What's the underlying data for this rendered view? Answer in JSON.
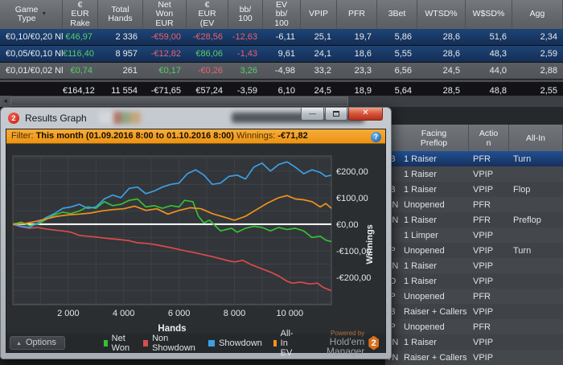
{
  "accent_colors": {
    "positive": "#55cf67",
    "negative": "#e9636f",
    "selected_row": "#16305c",
    "filter_bar": "#f2a12e"
  },
  "stats_table": {
    "columns": [
      {
        "label": "Game\nType",
        "sort_arrow": true
      },
      {
        "label": "€\nEUR\nRake"
      },
      {
        "label": "Total\nHands"
      },
      {
        "label": "Net\nWon\nEUR"
      },
      {
        "label": "€\nEUR\n(EV"
      },
      {
        "label": "bb/\n100"
      },
      {
        "label": "EV\nbb/\n100"
      },
      {
        "label": "VPIP"
      },
      {
        "label": "PFR"
      },
      {
        "label": "3Bet"
      },
      {
        "label": "WTSD%"
      },
      {
        "label": "W$SD%"
      },
      {
        "label": "Agg"
      }
    ],
    "rows": [
      {
        "selected": true,
        "cells": [
          {
            "v": "€0,10/€0,20 Nl"
          },
          {
            "v": "€46,97",
            "c": "pos"
          },
          {
            "v": "2 336"
          },
          {
            "v": "-€59,00",
            "c": "neg"
          },
          {
            "v": "-€28,56",
            "c": "neg"
          },
          {
            "v": "-12,63",
            "c": "neg"
          },
          {
            "v": "-6,11"
          },
          {
            "v": "25,1"
          },
          {
            "v": "19,7"
          },
          {
            "v": "5,86"
          },
          {
            "v": "28,6"
          },
          {
            "v": "51,6"
          },
          {
            "v": "2,34"
          }
        ]
      },
      {
        "selected": true,
        "cells": [
          {
            "v": "€0,05/€0,10 Nl"
          },
          {
            "v": "€116,40",
            "c": "pos"
          },
          {
            "v": "8 957"
          },
          {
            "v": "-€12,82",
            "c": "neg"
          },
          {
            "v": "€86,06",
            "c": "pos"
          },
          {
            "v": "-1,43",
            "c": "neg"
          },
          {
            "v": "9,61"
          },
          {
            "v": "24,1"
          },
          {
            "v": "18,6"
          },
          {
            "v": "5,55"
          },
          {
            "v": "28,6"
          },
          {
            "v": "48,3"
          },
          {
            "v": "2,59"
          }
        ]
      },
      {
        "selected": false,
        "cells": [
          {
            "v": "€0,01/€0,02 Nl"
          },
          {
            "v": "€0,74",
            "c": "pos"
          },
          {
            "v": "261"
          },
          {
            "v": "€0,17",
            "c": "pos"
          },
          {
            "v": "-€0,26",
            "c": "neg"
          },
          {
            "v": "3,26",
            "c": "pos"
          },
          {
            "v": "-4,98"
          },
          {
            "v": "33,2"
          },
          {
            "v": "23,3"
          },
          {
            "v": "6,56"
          },
          {
            "v": "24,5"
          },
          {
            "v": "44,0"
          },
          {
            "v": "2,88"
          }
        ]
      }
    ],
    "totals": {
      "cells": [
        {
          "v": ""
        },
        {
          "v": "€164,12"
        },
        {
          "v": "11 554"
        },
        {
          "v": "-€71,65"
        },
        {
          "v": "€57,24"
        },
        {
          "v": "-3,59"
        },
        {
          "v": "6,10"
        },
        {
          "v": "24,5"
        },
        {
          "v": "18,9"
        },
        {
          "v": "5,64"
        },
        {
          "v": "28,5"
        },
        {
          "v": "48,8"
        },
        {
          "v": "2,55"
        }
      ]
    }
  },
  "bg_table": {
    "columns": [
      {
        "label": ""
      },
      {
        "label": "Facing\nPreflop"
      },
      {
        "label": "Actio\nn"
      },
      {
        "label": "All-In"
      }
    ],
    "rows": [
      {
        "selected": true,
        "cells": [
          "B",
          "1 Raiser",
          "PFR",
          "Turn"
        ]
      },
      {
        "selected": false,
        "cells": [
          "",
          "1 Raiser",
          "VPIP",
          ""
        ]
      },
      {
        "selected": false,
        "cells": [
          "B",
          "1 Raiser",
          "VPIP",
          "Flop"
        ]
      },
      {
        "selected": false,
        "cells": [
          "TN",
          "Unopened",
          "PFR",
          ""
        ]
      },
      {
        "selected": false,
        "cells": [
          "TN",
          "1 Raiser",
          "PFR",
          "Preflop"
        ]
      },
      {
        "selected": false,
        "cells": [
          "",
          "1 Limper",
          "VPIP",
          ""
        ]
      },
      {
        "selected": false,
        "cells": [
          "P",
          "Unopened",
          "VPIP",
          "Turn"
        ]
      },
      {
        "selected": false,
        "cells": [
          "TN",
          "1 Raiser",
          "VPIP",
          ""
        ]
      },
      {
        "selected": false,
        "cells": [
          "O",
          "1 Raiser",
          "VPIP",
          ""
        ]
      },
      {
        "selected": false,
        "cells": [
          "P",
          "Unopened",
          "PFR",
          ""
        ]
      },
      {
        "selected": false,
        "cells": [
          "B",
          "Raiser + Callers",
          "VPIP",
          ""
        ]
      },
      {
        "selected": false,
        "cells": [
          "P",
          "Unopened",
          "PFR",
          ""
        ]
      },
      {
        "selected": false,
        "cells": [
          "TN",
          "1 Raiser",
          "VPIP",
          ""
        ]
      },
      {
        "selected": false,
        "cells": [
          "TN",
          "Raiser + Callers",
          "VPIP",
          ""
        ]
      }
    ]
  },
  "window": {
    "title": "Results Graph",
    "icon_badge": "2",
    "buttons": {
      "minimize": "—",
      "maximize": "",
      "close": "✕"
    },
    "filter": {
      "label": "Filter:",
      "range": "This month (01.09.2016 8:00 to 01.10.2016 8:00)",
      "winnings_label": "Winnings:",
      "winnings_value": "-€71,82"
    },
    "options_label": "Options",
    "powered_by": {
      "line1": "Powered by",
      "line2": "Hold'em Manager",
      "badge": "2"
    }
  },
  "chart_data": {
    "type": "line",
    "title": "",
    "xlabel": "Hands",
    "ylabel": "Winnings",
    "xlim": [
      0,
      11500
    ],
    "ylim": [
      -303,
      257
    ],
    "grid": true,
    "grid_x_step": 1000,
    "grid_y_step": 50,
    "zero_line": 0,
    "x_ticks": [
      {
        "value": 2000,
        "label": "2 000"
      },
      {
        "value": 4000,
        "label": "4 000"
      },
      {
        "value": 6000,
        "label": "6 000"
      },
      {
        "value": 8000,
        "label": "8 000"
      },
      {
        "value": 10000,
        "label": "10 000"
      }
    ],
    "y_ticks": [
      {
        "value": 200,
        "label": "€200,00"
      },
      {
        "value": 100,
        "label": "€100,00"
      },
      {
        "value": 0,
        "label": "€0,00"
      },
      {
        "value": -100,
        "label": "-€100,00"
      },
      {
        "value": -200,
        "label": "-€200,00"
      }
    ],
    "legend_position": "bottom",
    "series": [
      {
        "name": "Net Won",
        "color": "#35c035",
        "points": [
          [
            0,
            0
          ],
          [
            300,
            8
          ],
          [
            600,
            -5
          ],
          [
            900,
            0
          ],
          [
            1200,
            18
          ],
          [
            1500,
            35
          ],
          [
            1800,
            45
          ],
          [
            2100,
            40
          ],
          [
            2400,
            50
          ],
          [
            2700,
            65
          ],
          [
            3000,
            60
          ],
          [
            3300,
            85
          ],
          [
            3600,
            70
          ],
          [
            3900,
            75
          ],
          [
            4200,
            90
          ],
          [
            4500,
            95
          ],
          [
            4800,
            65
          ],
          [
            5100,
            70
          ],
          [
            5400,
            60
          ],
          [
            5700,
            70
          ],
          [
            6000,
            65
          ],
          [
            6200,
            90
          ],
          [
            6500,
            85
          ],
          [
            6700,
            30
          ],
          [
            6900,
            5
          ],
          [
            7100,
            15
          ],
          [
            7300,
            -5
          ],
          [
            7500,
            -25
          ],
          [
            7700,
            -20
          ],
          [
            7900,
            -15
          ],
          [
            8100,
            -30
          ],
          [
            8400,
            -15
          ],
          [
            8700,
            -8
          ],
          [
            9000,
            -12
          ],
          [
            9300,
            -25
          ],
          [
            9600,
            -12
          ],
          [
            9900,
            -20
          ],
          [
            10200,
            -15
          ],
          [
            10500,
            -25
          ],
          [
            10800,
            -50
          ],
          [
            11100,
            -45
          ],
          [
            11300,
            -60
          ],
          [
            11500,
            -65
          ]
        ]
      },
      {
        "name": "Non Showdown",
        "color": "#da4b4b",
        "points": [
          [
            0,
            0
          ],
          [
            300,
            -10
          ],
          [
            600,
            -15
          ],
          [
            900,
            -12
          ],
          [
            1200,
            -18
          ],
          [
            1500,
            -22
          ],
          [
            1800,
            -25
          ],
          [
            2100,
            -30
          ],
          [
            2400,
            -42
          ],
          [
            2700,
            -45
          ],
          [
            3000,
            -48
          ],
          [
            3300,
            -52
          ],
          [
            3600,
            -55
          ],
          [
            3900,
            -58
          ],
          [
            4200,
            -62
          ],
          [
            4500,
            -70
          ],
          [
            4800,
            -72
          ],
          [
            5100,
            -76
          ],
          [
            5400,
            -82
          ],
          [
            5700,
            -88
          ],
          [
            6000,
            -95
          ],
          [
            6300,
            -102
          ],
          [
            6600,
            -108
          ],
          [
            6900,
            -115
          ],
          [
            7200,
            -122
          ],
          [
            7500,
            -130
          ],
          [
            7800,
            -138
          ],
          [
            8000,
            -142
          ],
          [
            8300,
            -136
          ],
          [
            8600,
            -152
          ],
          [
            9000,
            -168
          ],
          [
            9300,
            -180
          ],
          [
            9600,
            -195
          ],
          [
            9900,
            -215
          ],
          [
            10100,
            -222
          ],
          [
            10400,
            -218
          ],
          [
            10700,
            -225
          ],
          [
            11000,
            -222
          ],
          [
            11200,
            -238
          ],
          [
            11500,
            -250
          ]
        ]
      },
      {
        "name": "Showdown",
        "color": "#3d9fe3",
        "points": [
          [
            0,
            0
          ],
          [
            300,
            -8
          ],
          [
            600,
            -12
          ],
          [
            900,
            5
          ],
          [
            1200,
            25
          ],
          [
            1500,
            40
          ],
          [
            1800,
            60
          ],
          [
            2100,
            65
          ],
          [
            2400,
            75
          ],
          [
            2700,
            60
          ],
          [
            3000,
            65
          ],
          [
            3300,
            95
          ],
          [
            3600,
            110
          ],
          [
            3900,
            100
          ],
          [
            4200,
            135
          ],
          [
            4500,
            140
          ],
          [
            4800,
            115
          ],
          [
            5100,
            125
          ],
          [
            5400,
            140
          ],
          [
            5700,
            150
          ],
          [
            6000,
            155
          ],
          [
            6300,
            190
          ],
          [
            6600,
            205
          ],
          [
            6900,
            185
          ],
          [
            7200,
            150
          ],
          [
            7500,
            155
          ],
          [
            7800,
            180
          ],
          [
            8100,
            185
          ],
          [
            8400,
            170
          ],
          [
            8700,
            215
          ],
          [
            9000,
            230
          ],
          [
            9300,
            200
          ],
          [
            9600,
            225
          ],
          [
            9900,
            235
          ],
          [
            10200,
            215
          ],
          [
            10500,
            190
          ],
          [
            10800,
            205
          ],
          [
            11100,
            195
          ],
          [
            11300,
            180
          ],
          [
            11500,
            185
          ]
        ]
      },
      {
        "name": "All-In EV",
        "color": "#f0921e",
        "points": [
          [
            0,
            0
          ],
          [
            400,
            2
          ],
          [
            800,
            10
          ],
          [
            1200,
            20
          ],
          [
            1600,
            30
          ],
          [
            2000,
            35
          ],
          [
            2400,
            38
          ],
          [
            2800,
            42
          ],
          [
            3200,
            50
          ],
          [
            3600,
            55
          ],
          [
            4000,
            58
          ],
          [
            4400,
            68
          ],
          [
            4800,
            52
          ],
          [
            5200,
            58
          ],
          [
            5600,
            38
          ],
          [
            6000,
            52
          ],
          [
            6400,
            62
          ],
          [
            6800,
            58
          ],
          [
            7200,
            40
          ],
          [
            7600,
            28
          ],
          [
            8000,
            15
          ],
          [
            8400,
            30
          ],
          [
            8800,
            55
          ],
          [
            9200,
            80
          ],
          [
            9600,
            100
          ],
          [
            9900,
            108
          ],
          [
            10200,
            95
          ],
          [
            10500,
            92
          ],
          [
            10800,
            85
          ],
          [
            11100,
            65
          ],
          [
            11300,
            78
          ],
          [
            11500,
            60
          ]
        ]
      }
    ]
  }
}
